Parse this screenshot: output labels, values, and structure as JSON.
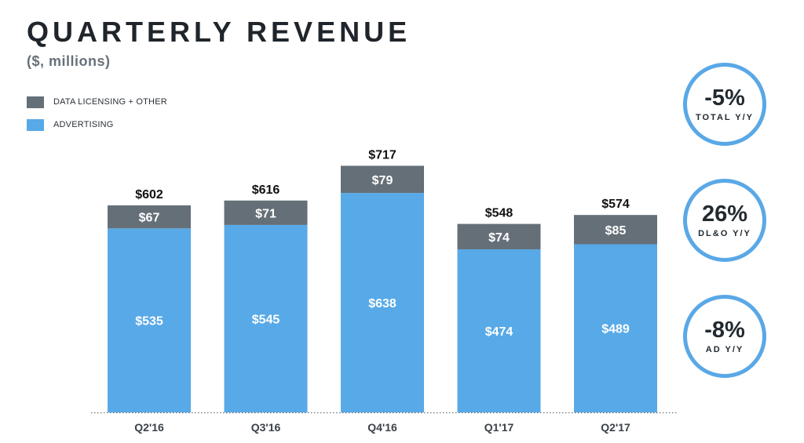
{
  "header": {
    "title": "QUARTERLY REVENUE",
    "subtitle": "($, millions)"
  },
  "legend": [
    {
      "label": "DATA LICENSING + OTHER",
      "color": "#656f78"
    },
    {
      "label": "ADVERTISING",
      "color": "#58a9e7"
    }
  ],
  "chart_data": {
    "type": "bar",
    "stacked": true,
    "title": "QUARTERLY REVENUE",
    "subtitle": "($, millions)",
    "categories": [
      "Q2'16",
      "Q3'16",
      "Q4'16",
      "Q1'17",
      "Q2'17"
    ],
    "series": [
      {
        "name": "ADVERTISING",
        "color": "#58a9e7",
        "values": [
          535,
          545,
          638,
          474,
          489
        ],
        "labels": [
          "$535",
          "$545",
          "$638",
          "$474",
          "$489"
        ]
      },
      {
        "name": "DATA LICENSING + OTHER",
        "color": "#656f78",
        "values": [
          67,
          71,
          79,
          74,
          85
        ],
        "labels": [
          "$67",
          "$71",
          "$79",
          "$74",
          "$85"
        ]
      }
    ],
    "totals": [
      602,
      616,
      717,
      548,
      574
    ],
    "total_labels": [
      "$602",
      "$616",
      "$717",
      "$548",
      "$574"
    ],
    "xlabel": "",
    "ylabel": "",
    "ylim": [
      0,
      800
    ],
    "grid": false,
    "legend_position": "top-left"
  },
  "kpis": [
    {
      "value": "-5%",
      "label": "TOTAL Y/Y"
    },
    {
      "value": "26%",
      "label": "DL&O Y/Y"
    },
    {
      "value": "-8%",
      "label": "AD Y/Y"
    }
  ]
}
